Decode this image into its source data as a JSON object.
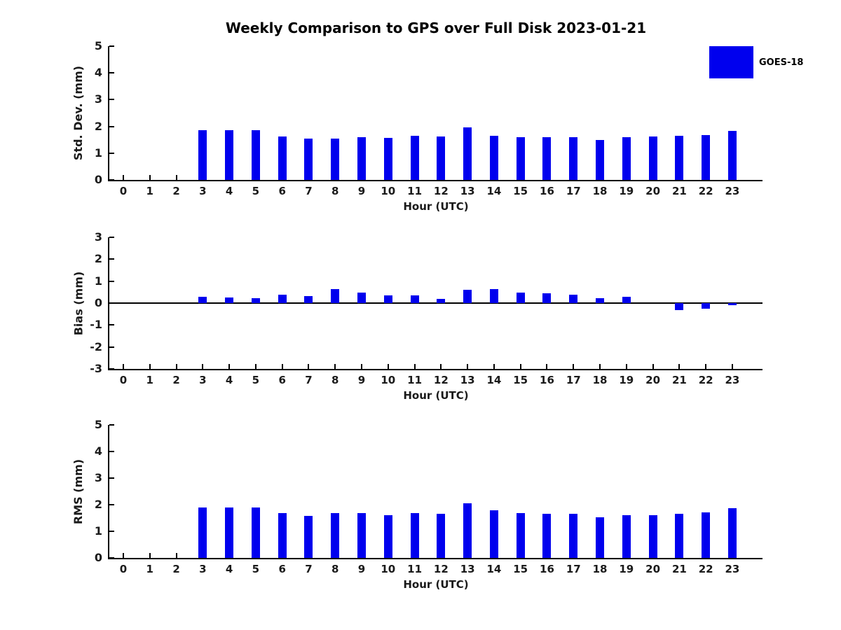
{
  "title": "Weekly Comparison to GPS over Full Disk 2023-01-21",
  "legend": {
    "label": "GOES-18",
    "color": "#0000EE",
    "position": "top-right"
  },
  "chart_data": [
    {
      "type": "bar",
      "name": "std-dev-subplot",
      "title": "",
      "ylabel": "Std. Dev. (mm)",
      "xlabel": "Hour (UTC)",
      "ylim": [
        0,
        5
      ],
      "yticks": [
        0,
        1,
        2,
        3,
        4,
        5
      ],
      "grid": false,
      "bar_color": "#0000EE",
      "series_name": "GOES-18",
      "categories": [
        0,
        1,
        2,
        3,
        4,
        5,
        6,
        7,
        8,
        9,
        10,
        11,
        12,
        13,
        14,
        15,
        16,
        17,
        18,
        19,
        20,
        21,
        22,
        23
      ],
      "values": [
        null,
        null,
        null,
        1.87,
        1.87,
        1.87,
        1.62,
        1.55,
        1.55,
        1.6,
        1.56,
        1.65,
        1.63,
        1.96,
        1.65,
        1.6,
        1.6,
        1.59,
        1.48,
        1.59,
        1.62,
        1.65,
        1.68,
        1.84
      ]
    },
    {
      "type": "bar",
      "name": "bias-subplot",
      "title": "",
      "ylabel": "Bias (mm)",
      "xlabel": "Hour (UTC)",
      "ylim": [
        -3,
        3
      ],
      "yticks": [
        -3,
        -2,
        -1,
        0,
        1,
        2,
        3
      ],
      "grid": false,
      "zero_line": true,
      "bar_color": "#0000EE",
      "series_name": "GOES-18",
      "categories": [
        0,
        1,
        2,
        3,
        4,
        5,
        6,
        7,
        8,
        9,
        10,
        11,
        12,
        13,
        14,
        15,
        16,
        17,
        18,
        19,
        20,
        21,
        22,
        23
      ],
      "values": [
        null,
        null,
        null,
        0.3,
        0.27,
        0.23,
        0.37,
        0.33,
        0.63,
        0.48,
        0.35,
        0.35,
        0.2,
        0.61,
        0.65,
        0.47,
        0.46,
        0.37,
        0.22,
        0.29,
        0.0,
        -0.33,
        -0.26,
        -0.08
      ]
    },
    {
      "type": "bar",
      "name": "rms-subplot",
      "title": "",
      "ylabel": "RMS (mm)",
      "xlabel": "Hour (UTC)",
      "ylim": [
        0,
        5
      ],
      "yticks": [
        0,
        1,
        2,
        3,
        4,
        5
      ],
      "grid": false,
      "bar_color": "#0000EE",
      "series_name": "GOES-18",
      "categories": [
        0,
        1,
        2,
        3,
        4,
        5,
        6,
        7,
        8,
        9,
        10,
        11,
        12,
        13,
        14,
        15,
        16,
        17,
        18,
        19,
        20,
        21,
        22,
        23
      ],
      "values": [
        null,
        null,
        null,
        1.89,
        1.89,
        1.89,
        1.68,
        1.58,
        1.68,
        1.68,
        1.61,
        1.68,
        1.65,
        2.04,
        1.78,
        1.68,
        1.66,
        1.65,
        1.52,
        1.61,
        1.6,
        1.67,
        1.72,
        1.86
      ]
    }
  ]
}
